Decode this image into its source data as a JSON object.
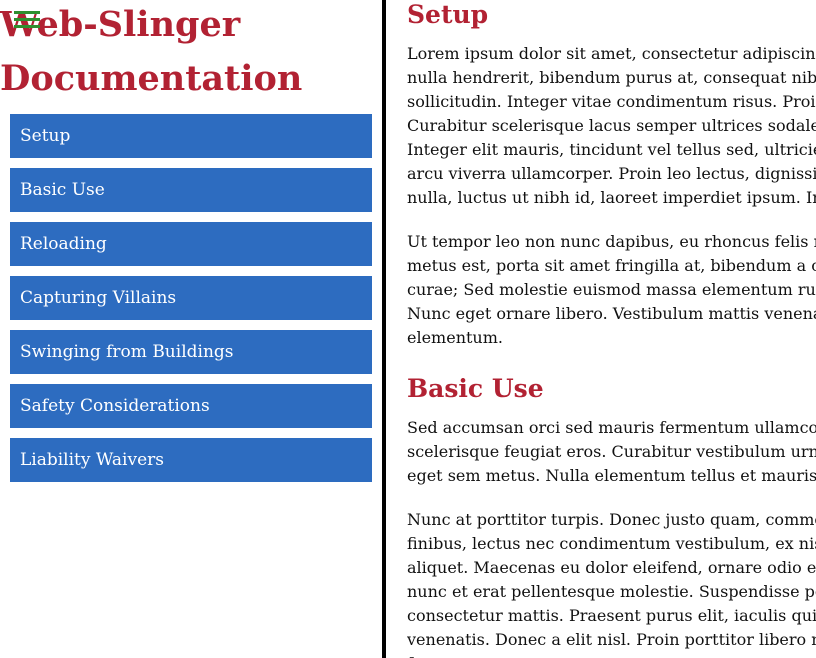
{
  "sidebar": {
    "title_line1": "Web-Slinger",
    "title_line2": "Documentation",
    "menu_icon": "hamburger-menu-icon",
    "items": [
      {
        "label": "Setup"
      },
      {
        "label": "Basic Use"
      },
      {
        "label": "Reloading"
      },
      {
        "label": "Capturing Villains"
      },
      {
        "label": "Swinging from Buildings"
      },
      {
        "label": "Safety Considerations"
      },
      {
        "label": "Liability Waivers"
      }
    ]
  },
  "colors": {
    "title": "#b22233",
    "nav_bg": "#2d6cc0",
    "nav_text": "#ffffff",
    "divider": "#000000",
    "menu_icon": "#2f8f2f"
  },
  "main": {
    "sections": [
      {
        "title": "Setup",
        "paragraphs": [
          "Lorem ipsum dolor sit amet, consectetur adipiscin\nnulla hendrerit, bibendum purus at, consequat nib\nsollicitudin. Integer vitae condimentum risus. Proi\nCurabitur scelerisque lacus semper ultrices sodale\nInteger elit mauris, tincidunt vel tellus sed, ultricie\narcu viverra ullamcorper. Proin leo lectus, dignissi\nnulla, luctus ut nibh id, laoreet imperdiet ipsum. In",
          "Ut tempor leo non nunc dapibus, eu rhoncus felis n\nmetus est, porta sit amet fringilla at, bibendum a c\ncurae; Sed molestie euismod massa elementum ru\nNunc eget ornare libero. Vestibulum mattis venena\nelementum."
        ]
      },
      {
        "title": "Basic Use",
        "paragraphs": [
          "Sed accumsan orci sed mauris fermentum ullamco\nscelerisque feugiat eros. Curabitur vestibulum urn\neget sem metus. Nulla elementum tellus et mauris",
          "Nunc at porttitor turpis. Donec justo quam, comme\nfinibus, lectus nec condimentum vestibulum, ex nis\naliquet. Maecenas eu dolor eleifend, ornare odio e\nnunc et erat pellentesque molestie. Suspendisse po\nconsectetur mattis. Praesent purus elit, iaculis qui\nvenenatis. Donec a elit nisl. Proin porttitor libero n\nf"
        ]
      }
    ]
  }
}
